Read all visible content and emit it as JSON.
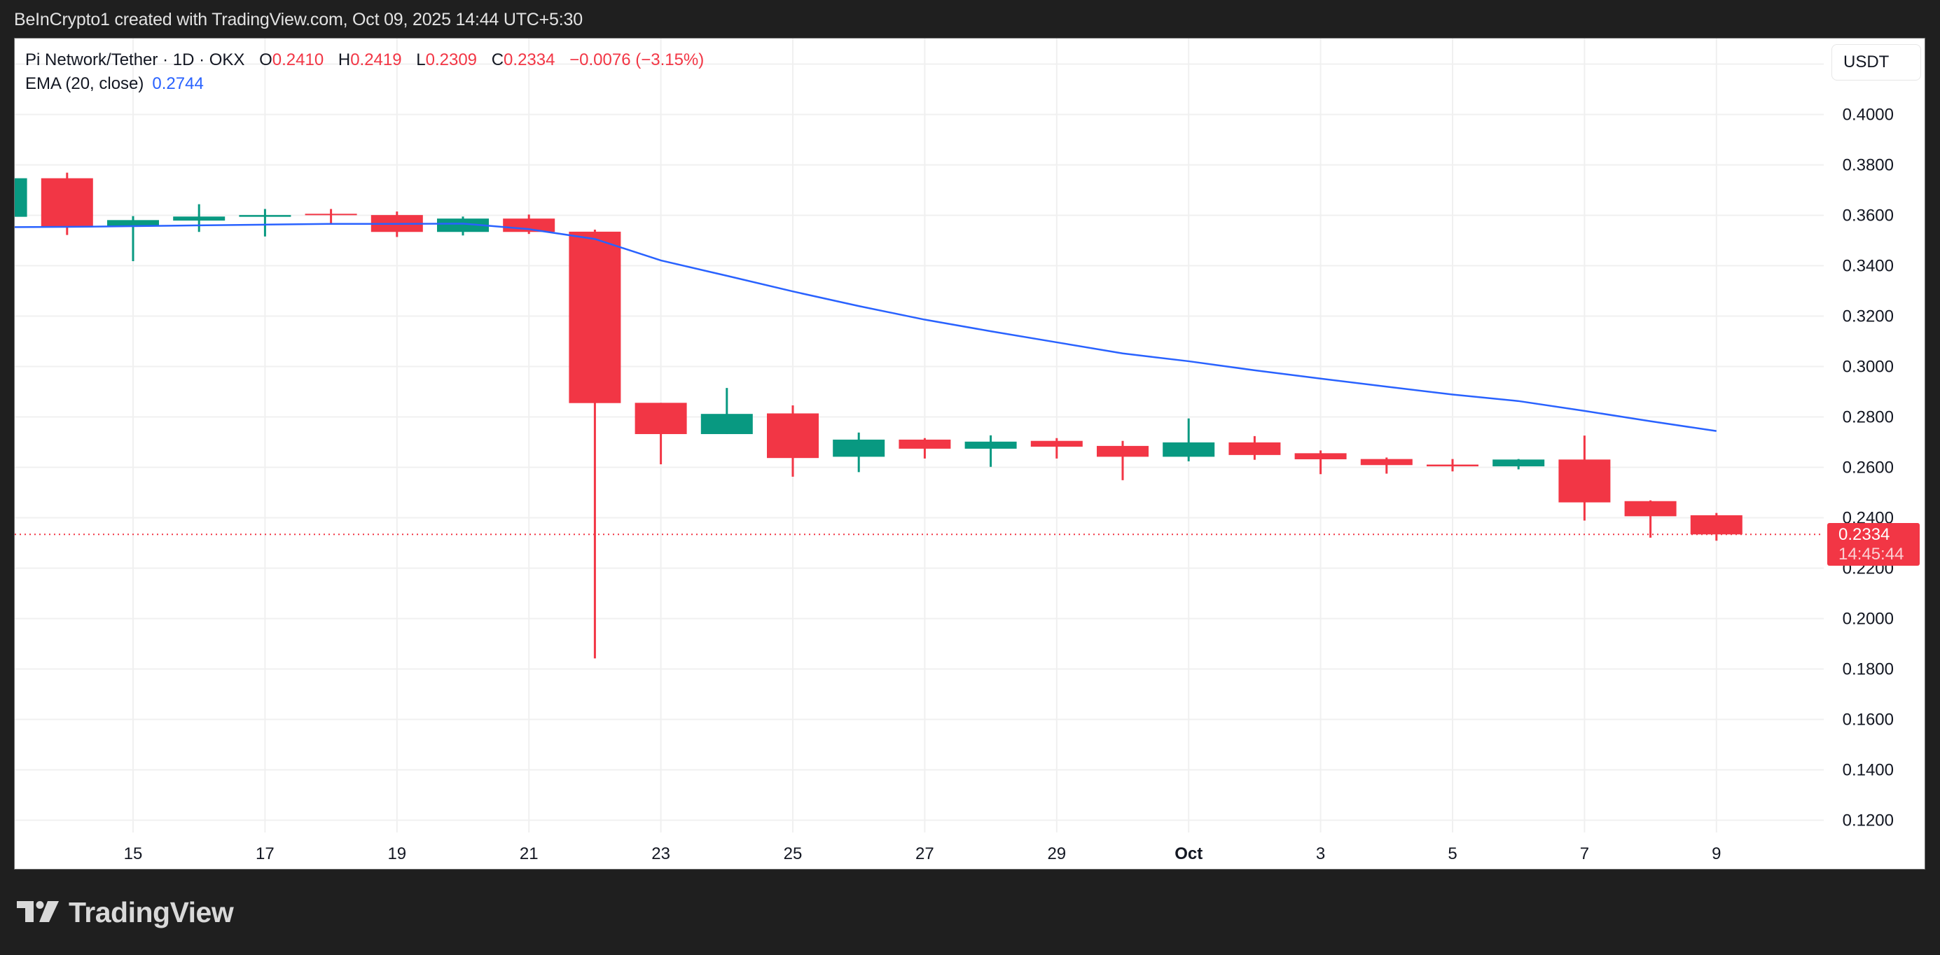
{
  "header": {
    "credit": "BeInCrypto1 created with TradingView.com, Oct 09, 2025 14:44 UTC+5:30"
  },
  "legend": {
    "symbol": "Pi Network/Tether · 1D · OKX",
    "open_label": "O",
    "open": "0.2410",
    "high_label": "H",
    "high": "0.2419",
    "low_label": "L",
    "low": "0.2309",
    "close_label": "C",
    "close": "0.2334",
    "change": "−0.0076 (−3.15%)",
    "ema_label": "EMA (20, close)",
    "ema_value": "0.2744"
  },
  "price_axis": {
    "currency": "USDT",
    "last_price": "0.2334",
    "countdown": "14:45:44"
  },
  "branding": {
    "logo_text": "TradingView"
  },
  "colors": {
    "up": "#089981",
    "down": "#f23645",
    "ema": "#2962ff",
    "grid": "#f0f0f0",
    "axis_text": "#131722"
  },
  "chart_data": {
    "type": "candlestick",
    "title": "Pi Network/Tether · 1D · OKX",
    "xlabel": "",
    "ylabel": "USDT",
    "ylim": [
      0.11,
      0.43
    ],
    "y_ticks": [
      "0.1200",
      "0.1400",
      "0.1600",
      "0.1800",
      "0.2000",
      "0.2200",
      "0.2400",
      "0.2600",
      "0.2800",
      "0.3000",
      "0.3200",
      "0.3400",
      "0.3600",
      "0.3800",
      "0.4000"
    ],
    "x_ticks": [
      {
        "label": "15",
        "day": 15
      },
      {
        "label": "17",
        "day": 17
      },
      {
        "label": "19",
        "day": 19
      },
      {
        "label": "21",
        "day": 21
      },
      {
        "label": "23",
        "day": 23
      },
      {
        "label": "25",
        "day": 25
      },
      {
        "label": "27",
        "day": 27
      },
      {
        "label": "29",
        "day": 29
      },
      {
        "label": "Oct",
        "day": 31,
        "bold": true
      },
      {
        "label": "3",
        "day": 33
      },
      {
        "label": "5",
        "day": 35
      },
      {
        "label": "7",
        "day": 37
      },
      {
        "label": "9",
        "day": 39
      }
    ],
    "grid": true,
    "candles": [
      {
        "date": "Sep 13",
        "day": 13,
        "o": 0.3594,
        "h": 0.3747,
        "l": 0.3594,
        "c": 0.3747
      },
      {
        "date": "Sep 14",
        "day": 14,
        "o": 0.3747,
        "h": 0.3769,
        "l": 0.3522,
        "c": 0.3556
      },
      {
        "date": "Sep 15",
        "day": 15,
        "o": 0.3556,
        "h": 0.3597,
        "l": 0.3418,
        "c": 0.3581
      },
      {
        "date": "Sep 16",
        "day": 16,
        "o": 0.3579,
        "h": 0.3644,
        "l": 0.3534,
        "c": 0.3595
      },
      {
        "date": "Sep 17",
        "day": 17,
        "o": 0.3594,
        "h": 0.3625,
        "l": 0.3516,
        "c": 0.3601
      },
      {
        "date": "Sep 18",
        "day": 18,
        "o": 0.3606,
        "h": 0.3625,
        "l": 0.3565,
        "c": 0.3601
      },
      {
        "date": "Sep 19",
        "day": 19,
        "o": 0.3601,
        "h": 0.3615,
        "l": 0.3514,
        "c": 0.3534
      },
      {
        "date": "Sep 20",
        "day": 20,
        "o": 0.3534,
        "h": 0.3595,
        "l": 0.352,
        "c": 0.3587
      },
      {
        "date": "Sep 21",
        "day": 21,
        "o": 0.3587,
        "h": 0.3603,
        "l": 0.3526,
        "c": 0.3534
      },
      {
        "date": "Sep 22",
        "day": 22,
        "o": 0.3535,
        "h": 0.3543,
        "l": 0.1842,
        "c": 0.2855
      },
      {
        "date": "Sep 23",
        "day": 23,
        "o": 0.2856,
        "h": 0.2856,
        "l": 0.2612,
        "c": 0.2732
      },
      {
        "date": "Sep 24",
        "day": 24,
        "o": 0.2732,
        "h": 0.2915,
        "l": 0.2732,
        "c": 0.2812
      },
      {
        "date": "Sep 25",
        "day": 25,
        "o": 0.2814,
        "h": 0.2846,
        "l": 0.2563,
        "c": 0.2637
      },
      {
        "date": "Sep 26",
        "day": 26,
        "o": 0.2642,
        "h": 0.2738,
        "l": 0.2581,
        "c": 0.271
      },
      {
        "date": "Sep 27",
        "day": 27,
        "o": 0.271,
        "h": 0.2716,
        "l": 0.2635,
        "c": 0.2674
      },
      {
        "date": "Sep 28",
        "day": 28,
        "o": 0.2674,
        "h": 0.2727,
        "l": 0.2602,
        "c": 0.2702
      },
      {
        "date": "Sep 29",
        "day": 29,
        "o": 0.2705,
        "h": 0.2716,
        "l": 0.2635,
        "c": 0.2682
      },
      {
        "date": "Sep 30",
        "day": 30,
        "o": 0.2685,
        "h": 0.2705,
        "l": 0.2549,
        "c": 0.2642
      },
      {
        "date": "Oct 1",
        "day": 31,
        "o": 0.2642,
        "h": 0.2794,
        "l": 0.2624,
        "c": 0.2699
      },
      {
        "date": "Oct 2",
        "day": 32,
        "o": 0.2699,
        "h": 0.2724,
        "l": 0.263,
        "c": 0.2649
      },
      {
        "date": "Oct 3",
        "day": 33,
        "o": 0.2656,
        "h": 0.2667,
        "l": 0.2573,
        "c": 0.2632
      },
      {
        "date": "Oct 4",
        "day": 34,
        "o": 0.2633,
        "h": 0.2639,
        "l": 0.2575,
        "c": 0.2609
      },
      {
        "date": "Oct 5",
        "day": 35,
        "o": 0.2611,
        "h": 0.2633,
        "l": 0.2584,
        "c": 0.2604
      },
      {
        "date": "Oct 6",
        "day": 36,
        "o": 0.2604,
        "h": 0.2633,
        "l": 0.2592,
        "c": 0.2631
      },
      {
        "date": "Oct 7",
        "day": 37,
        "o": 0.2631,
        "h": 0.2726,
        "l": 0.2389,
        "c": 0.2461
      },
      {
        "date": "Oct 8",
        "day": 38,
        "o": 0.2466,
        "h": 0.2469,
        "l": 0.2321,
        "c": 0.2406
      },
      {
        "date": "Oct 9",
        "day": 39,
        "o": 0.241,
        "h": 0.2419,
        "l": 0.2309,
        "c": 0.2334
      }
    ],
    "series": [
      {
        "name": "EMA (20, close)",
        "color": "#2962ff",
        "days": [
          13,
          14,
          15,
          16,
          17,
          18,
          19,
          20,
          21,
          22,
          23,
          24,
          25,
          26,
          27,
          28,
          29,
          30,
          31,
          32,
          33,
          34,
          35,
          36,
          37,
          38,
          39
        ],
        "values": [
          0.3553,
          0.3554,
          0.3557,
          0.356,
          0.3563,
          0.3566,
          0.3566,
          0.3567,
          0.3545,
          0.3506,
          0.3421,
          0.336,
          0.3298,
          0.324,
          0.3186,
          0.314,
          0.3096,
          0.3052,
          0.3021,
          0.2985,
          0.2952,
          0.292,
          0.2889,
          0.2863,
          0.2824,
          0.2783,
          0.2744
        ]
      }
    ],
    "last_price_line": 0.2334,
    "legend_position": "top-left"
  }
}
